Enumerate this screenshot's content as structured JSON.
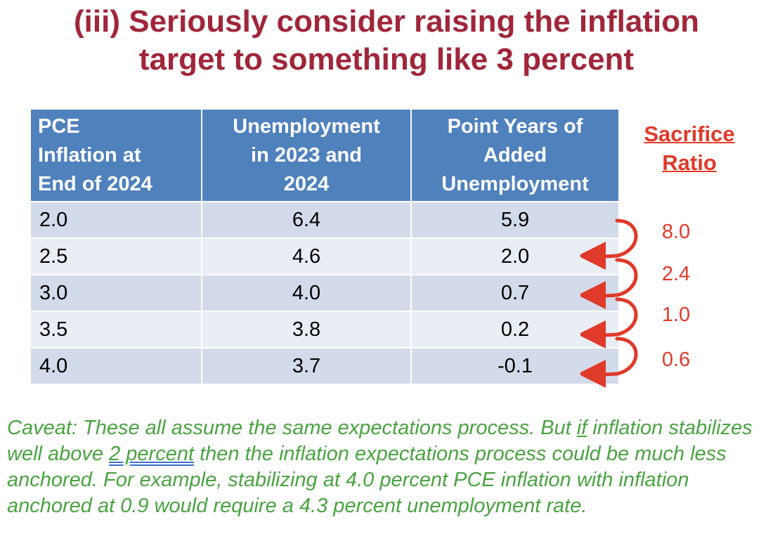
{
  "title": {
    "line1": "(iii) Seriously consider raising the inflation",
    "line2": "target to something like 3 percent"
  },
  "table": {
    "headers": [
      [
        "PCE",
        "Inflation at",
        "End of 2024"
      ],
      [
        "Unemployment",
        "in 2023 and",
        "2024"
      ],
      [
        "Point Years of",
        "Added",
        "Unemployment"
      ]
    ],
    "rows": [
      [
        "2.0",
        "6.4",
        "5.9"
      ],
      [
        "2.5",
        "4.6",
        "2.0"
      ],
      [
        "3.0",
        "4.0",
        "0.7"
      ],
      [
        "3.5",
        "3.8",
        "0.2"
      ],
      [
        "4.0",
        "3.7",
        "-0.1"
      ]
    ]
  },
  "sacrifice_ratio": {
    "heading_line1": "Sacrifice",
    "heading_line2": "Ratio",
    "values": [
      "8.0",
      "2.4",
      "1.0",
      "0.6"
    ]
  },
  "caveat": {
    "part1": "Caveat: These all assume the same expectations process. But ",
    "if_word": "if",
    "part2": " inflation stabilizes well above ",
    "underlined": "2 percent",
    "part3": " then the inflation expectations process could be much less anchored. For example, stabilizing at 4.0 percent PCE inflation with inflation anchored at 0.9 would require a 4.3 percent unemployment rate."
  },
  "colors": {
    "title": "#a0263a",
    "header_bg": "#4f81bd",
    "row_odd": "#d3dbea",
    "row_even": "#e9edf4",
    "sacrifice": "#e03a2a",
    "caveat": "#4aa341"
  }
}
